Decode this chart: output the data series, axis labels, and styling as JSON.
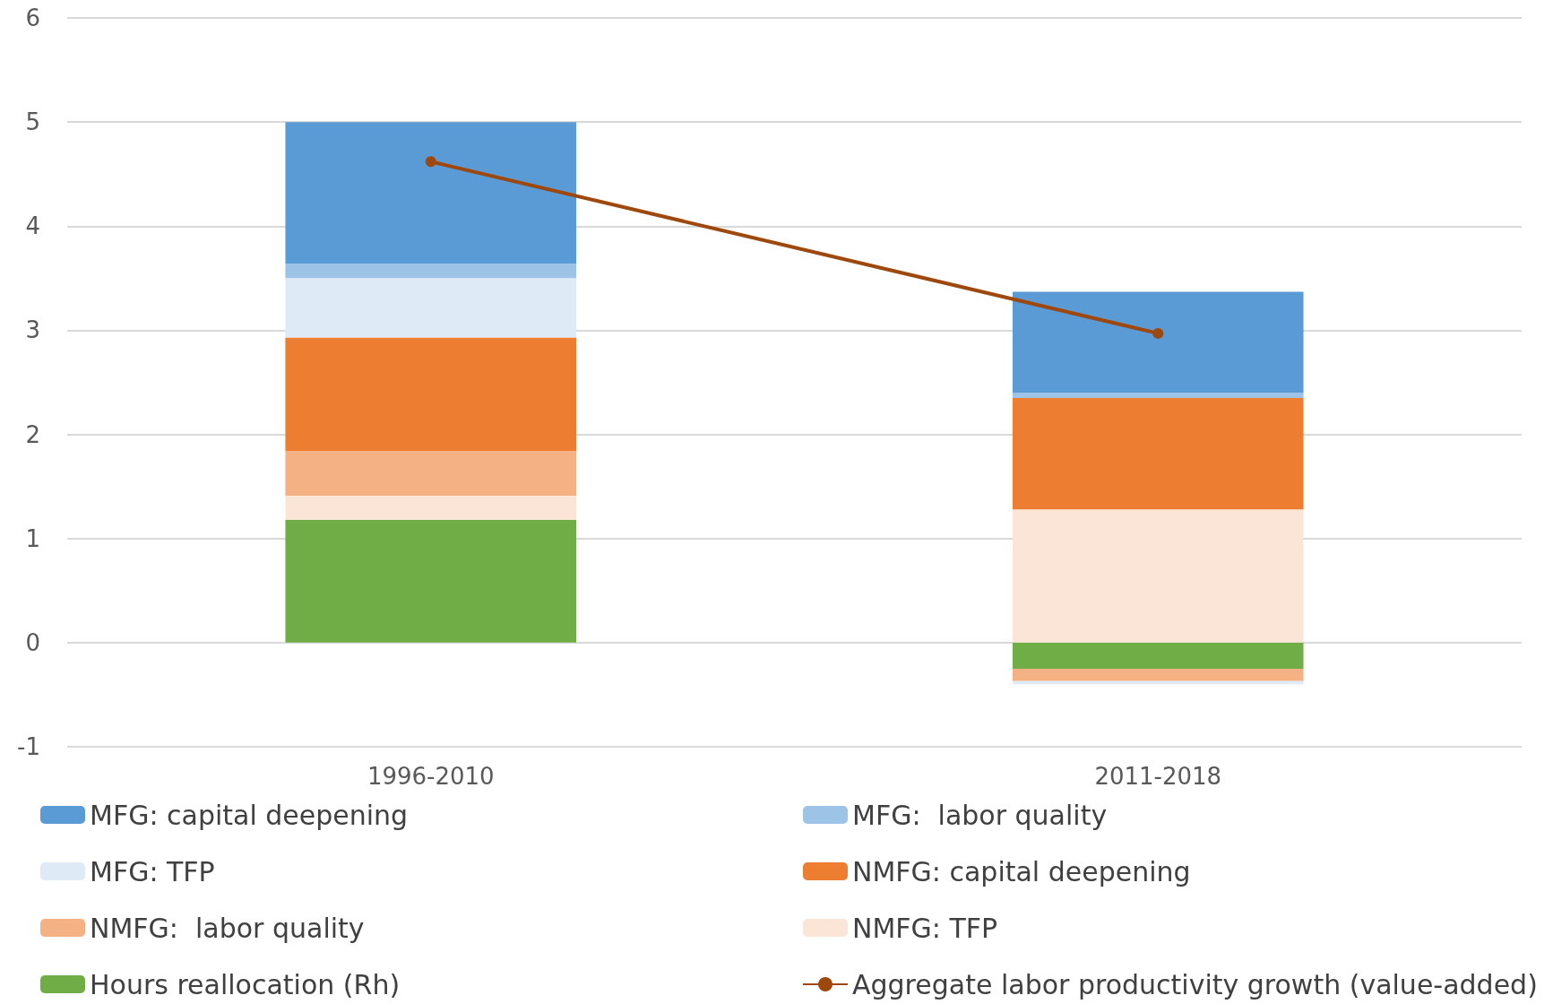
{
  "chart_data": {
    "type": "bar",
    "stacked": true,
    "categories": [
      "1996-2010",
      "2011-2018"
    ],
    "series": [
      {
        "name": "Hours reallocation (Rh)",
        "color": "#70ad47",
        "values": [
          1.18,
          -0.25
        ]
      },
      {
        "name": "NMFG: TFP",
        "color": "#fbe5d6",
        "values": [
          0.23,
          1.28
        ]
      },
      {
        "name": "NMFG:  labor quality",
        "color": "#f4b183",
        "values": [
          0.43,
          -0.12
        ]
      },
      {
        "name": "NMFG: capital deepening",
        "color": "#ed7d31",
        "values": [
          1.09,
          1.07
        ]
      },
      {
        "name": "MFG: TFP",
        "color": "#deebf7",
        "values": [
          0.57,
          -0.03
        ]
      },
      {
        "name": "MFG:  labor quality",
        "color": "#9dc3e6",
        "values": [
          0.14,
          0.05
        ]
      },
      {
        "name": "MFG: capital deepening",
        "color": "#5b9bd5",
        "values": [
          1.36,
          0.97
        ]
      },
      {
        "name": "Aggregate labor productivity growth (value-added)",
        "type": "line",
        "color": "#9e480e",
        "values": [
          4.62,
          2.97
        ],
        "marker": "circle"
      }
    ],
    "ylim": [
      -1,
      6
    ],
    "yticks": [
      -1,
      0,
      1,
      2,
      3,
      4,
      5,
      6
    ],
    "grid": "y",
    "legend": "bottom"
  }
}
